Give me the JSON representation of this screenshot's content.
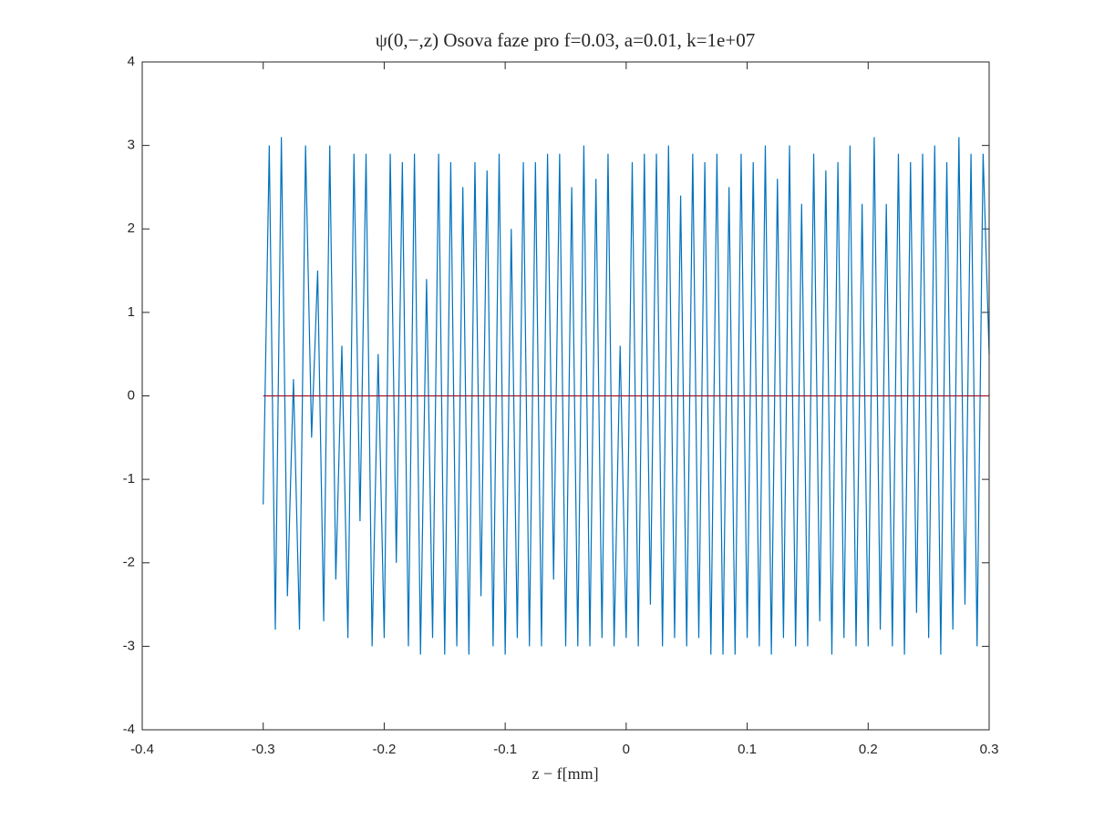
{
  "chart_data": {
    "type": "line",
    "title": "ψ(0,−,z) Osova faze pro f=0.03, a=0.01, k=1e+07",
    "xlabel": "z − f[mm]",
    "xlim": [
      -0.4,
      0.3
    ],
    "xticks": [
      -0.4,
      -0.3,
      -0.2,
      -0.1,
      0,
      0.1,
      0.2,
      0.3
    ],
    "ylim": [
      -4,
      4
    ],
    "yticks": [
      -4,
      -3,
      -2,
      -1,
      0,
      1,
      2,
      3,
      4
    ],
    "grid": false,
    "series": [
      {
        "color": "#0072bd",
        "x": [
          -0.3,
          -0.295,
          -0.29,
          -0.285,
          -0.28,
          -0.275,
          -0.27,
          -0.265,
          -0.26,
          -0.255,
          -0.25,
          -0.245,
          -0.24,
          -0.235,
          -0.23,
          -0.225,
          -0.22,
          -0.215,
          -0.21,
          -0.205,
          -0.2,
          -0.195,
          -0.19,
          -0.185,
          -0.18,
          -0.175,
          -0.17,
          -0.165,
          -0.16,
          -0.155,
          -0.15,
          -0.145,
          -0.14,
          -0.135,
          -0.13,
          -0.125,
          -0.12,
          -0.115,
          -0.11,
          -0.105,
          -0.1,
          -0.095,
          -0.09,
          -0.085,
          -0.08,
          -0.075,
          -0.07,
          -0.065,
          -0.06,
          -0.055,
          -0.05,
          -0.045,
          -0.04,
          -0.035,
          -0.03,
          -0.025,
          -0.02,
          -0.015,
          -0.01,
          -0.005,
          0,
          0.005,
          0.01,
          0.015,
          0.02,
          0.025,
          0.03,
          0.035,
          0.04,
          0.045,
          0.05,
          0.055,
          0.06,
          0.065,
          0.07,
          0.075,
          0.08,
          0.085,
          0.09,
          0.095,
          0.1,
          0.105,
          0.11,
          0.115,
          0.12,
          0.125,
          0.13,
          0.135,
          0.14,
          0.145,
          0.15,
          0.155,
          0.16,
          0.165,
          0.17,
          0.175,
          0.18,
          0.185,
          0.19,
          0.195,
          0.2,
          0.205,
          0.21,
          0.215,
          0.22,
          0.225,
          0.23,
          0.235,
          0.24,
          0.245,
          0.25,
          0.255,
          0.26,
          0.265,
          0.27,
          0.275,
          0.28,
          0.285,
          0.29,
          0.295,
          0.3
        ],
        "values": [
          -1.3,
          3.0,
          -2.8,
          3.1,
          -2.4,
          0.2,
          -2.8,
          3.0,
          -0.5,
          1.5,
          -2.7,
          3.0,
          -2.2,
          0.6,
          -2.9,
          2.9,
          -1.5,
          2.9,
          -3.0,
          0.5,
          -2.9,
          2.9,
          -2.0,
          2.8,
          -3.0,
          2.9,
          -3.1,
          1.4,
          -2.9,
          2.9,
          -3.1,
          2.8,
          -3.0,
          2.5,
          -3.1,
          2.8,
          -2.4,
          2.7,
          -3.0,
          2.9,
          -3.1,
          2.0,
          -2.9,
          2.8,
          -3.0,
          2.8,
          -3.0,
          2.9,
          -2.2,
          2.9,
          -3.0,
          2.5,
          -3.0,
          3.0,
          -3.0,
          2.6,
          -2.9,
          2.9,
          -3.0,
          0.6,
          -2.9,
          2.8,
          -3.0,
          2.9,
          -2.5,
          2.9,
          -3.0,
          3.0,
          -2.9,
          2.4,
          -3.0,
          2.9,
          -2.9,
          2.8,
          -3.1,
          2.9,
          -3.1,
          2.5,
          -3.1,
          2.9,
          -2.9,
          2.8,
          -3.0,
          3.0,
          -3.1,
          2.6,
          -2.9,
          3.0,
          -3.0,
          2.3,
          -3.0,
          2.9,
          -2.7,
          2.7,
          -3.1,
          2.8,
          -2.9,
          3.0,
          -3.0,
          2.3,
          -3.0,
          3.1,
          -2.8,
          2.3,
          -3.0,
          2.9,
          -3.1,
          2.8,
          -2.6,
          2.9,
          -2.9,
          3.0,
          -3.1,
          2.8,
          -2.8,
          3.1,
          -2.5,
          2.9,
          -3.0,
          2.9,
          0.5
        ]
      },
      {
        "color": "#a2142f",
        "x": [
          -0.3,
          0.3
        ],
        "values": [
          0,
          0
        ]
      }
    ]
  }
}
